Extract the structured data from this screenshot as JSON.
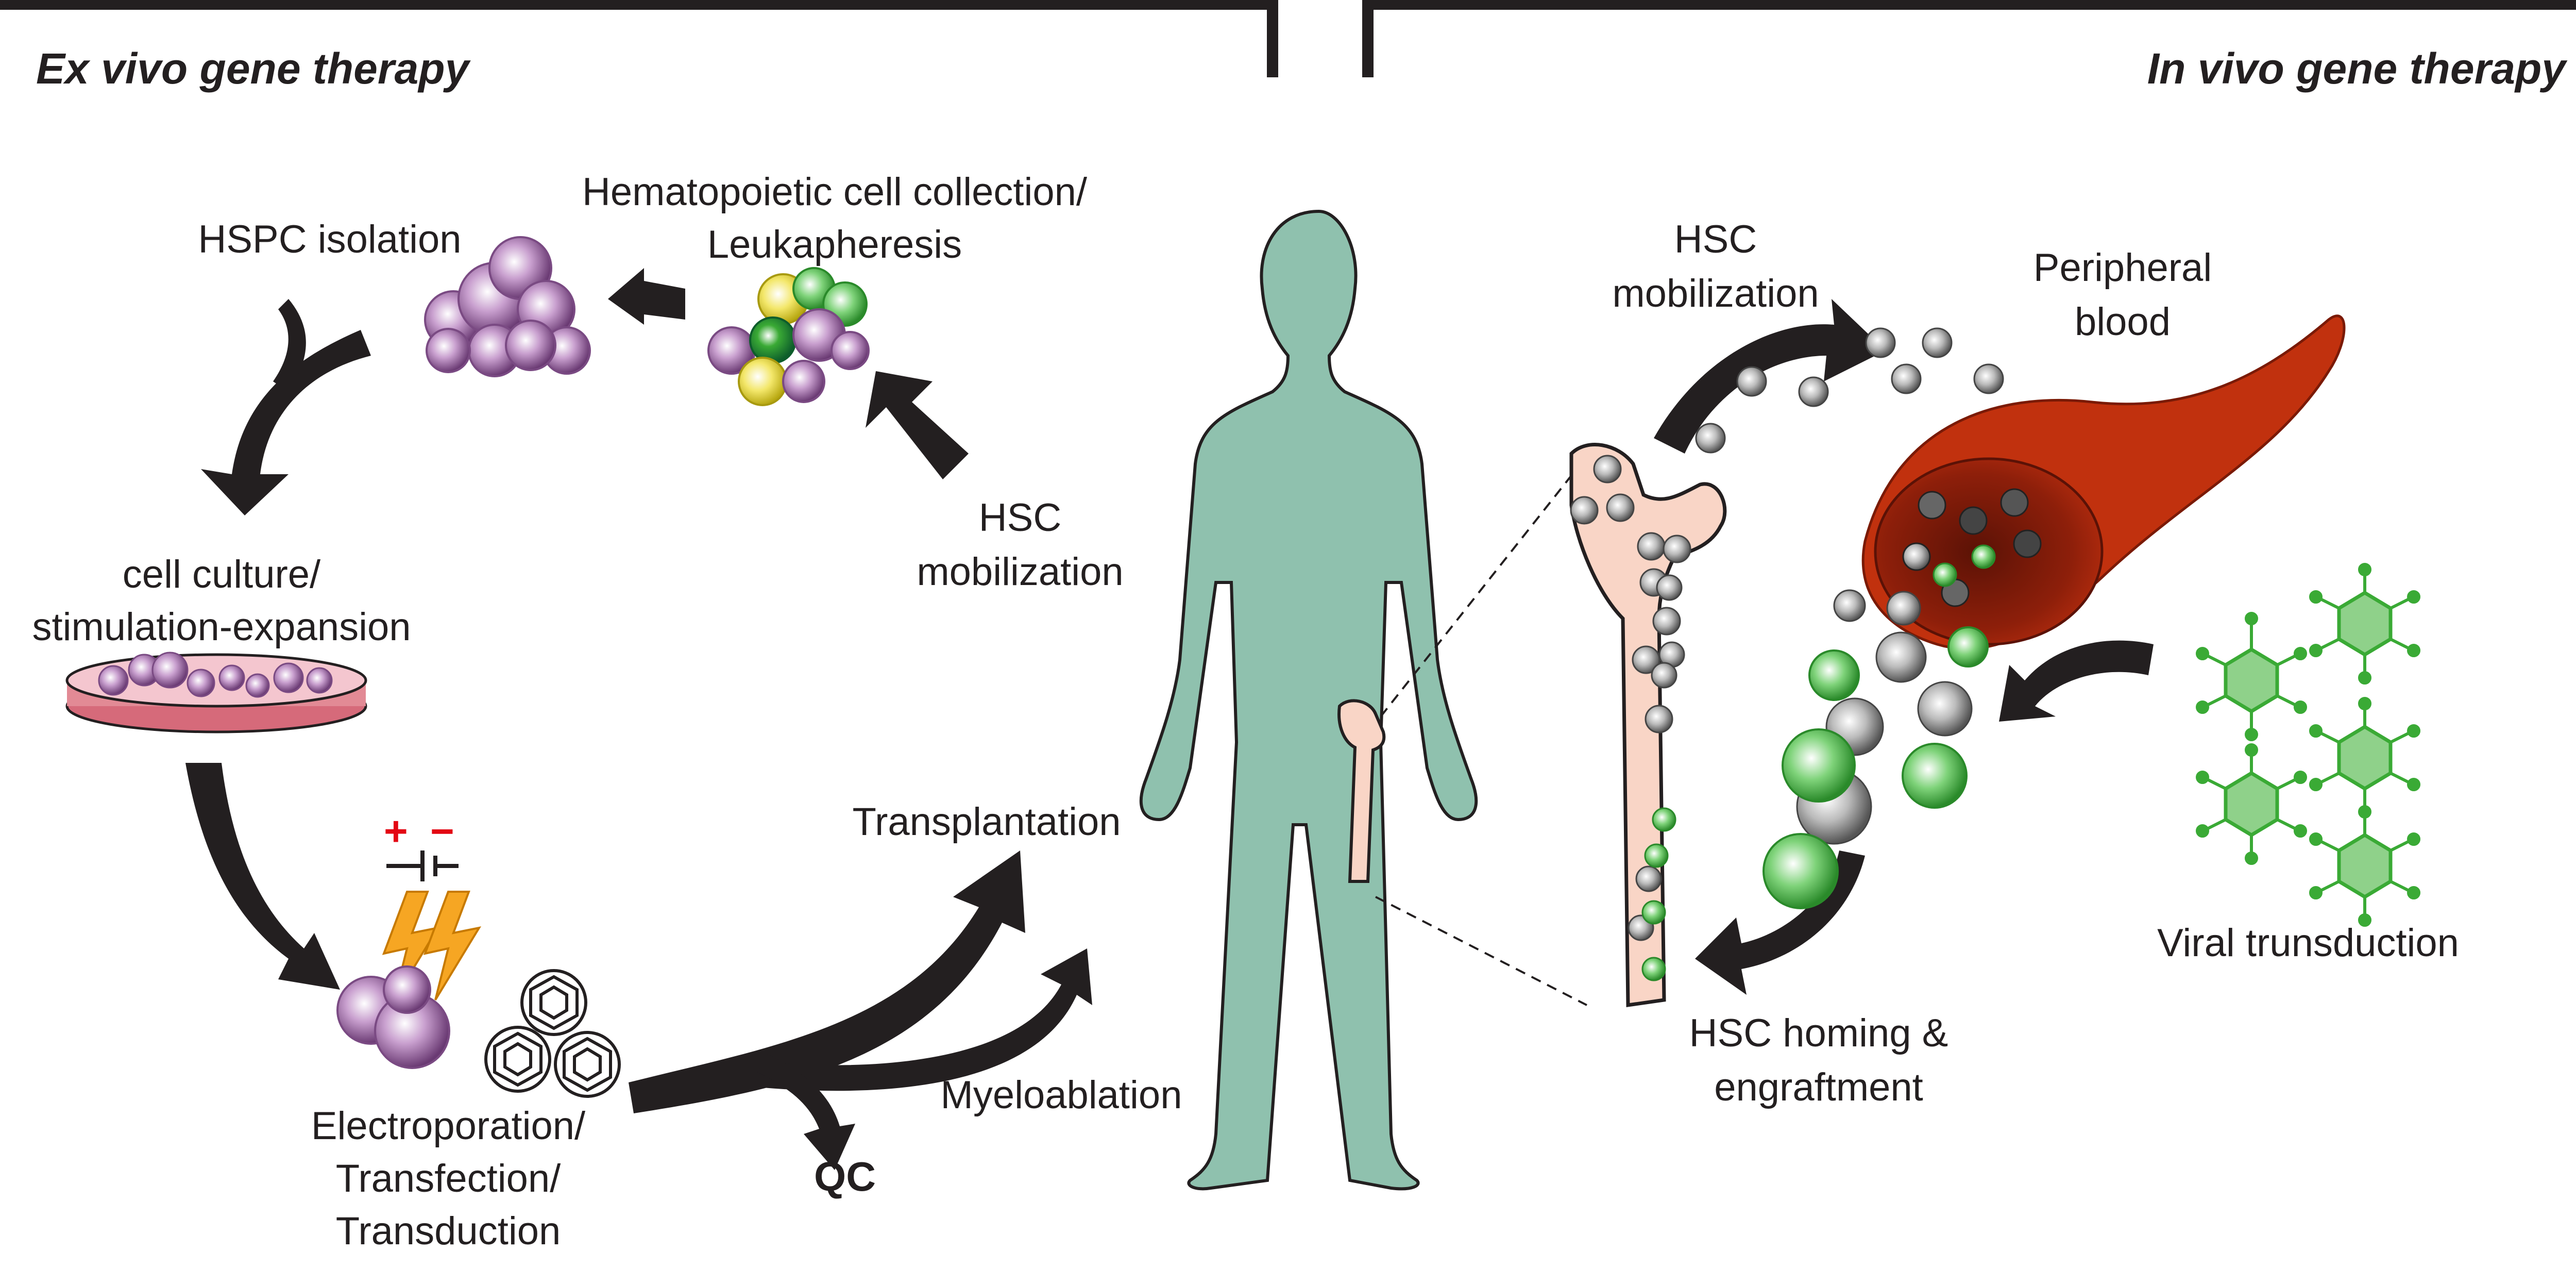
{
  "headers": {
    "left": "Ex vivo gene therapy",
    "right": "In vivo gene therapy"
  },
  "labels": {
    "hspc_isolation": "HSPC isolation",
    "collection_line1": "Hematopoietic cell collection/",
    "collection_line2": "Leukapheresis",
    "hsc_mobilization_left_line1": "HSC",
    "hsc_mobilization_left_line2": "mobilization",
    "cell_culture_line1": "cell culture/",
    "cell_culture_line2": "stimulation-expansion",
    "electroporation_line1": "Electroporation/",
    "electroporation_line2": "Transfection/",
    "electroporation_line3": "Transduction",
    "qc": "QC",
    "transplantation": "Transplantation",
    "myeloablation": "Myeloablation",
    "hsc_mobilization_right_line1": "HSC",
    "hsc_mobilization_right_line2": "mobilization",
    "peripheral_blood_line1": "Peripheral",
    "peripheral_blood_line2": "blood",
    "viral_transduction": "Viral trunsduction",
    "homing_line1": "HSC homing &",
    "homing_line2": "engraftment"
  },
  "symbols": {
    "plus": "+",
    "minus": "−"
  },
  "colors": {
    "arrow": "#231f20",
    "body": "#8fc1ae",
    "bone": "#f9d5c6",
    "blood_vessel": "#c1310e",
    "virus_green": "#3aaa35",
    "hspc_purple": "#c9a0cf",
    "lightning": "#f6a623",
    "electrode_red": "#e30613"
  }
}
